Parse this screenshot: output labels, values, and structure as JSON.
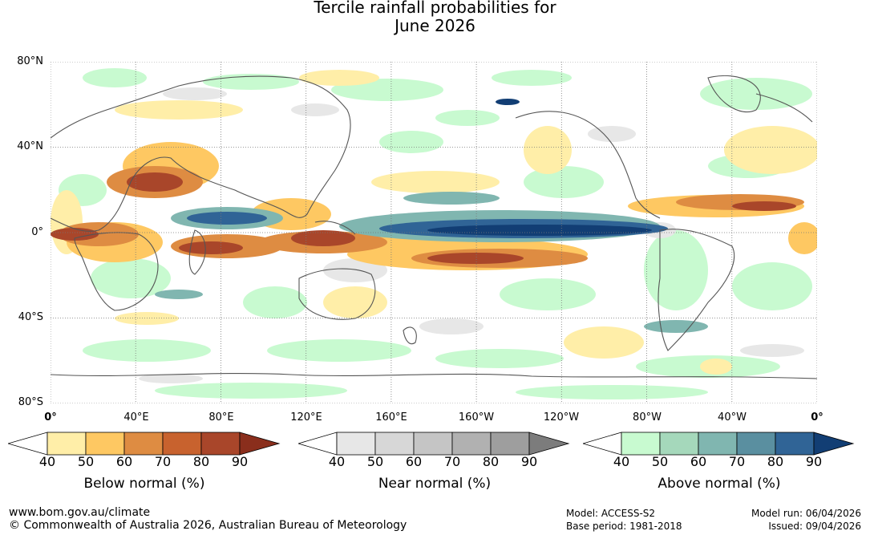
{
  "title": {
    "line1": "Tercile rainfall probabilities for",
    "line2": "June 2026"
  },
  "lat_labels": [
    "80°N",
    "40°N",
    "0°",
    "40°S",
    "80°S"
  ],
  "lon_labels": [
    "0°",
    "40°E",
    "80°E",
    "120°E",
    "160°E",
    "160°W",
    "120°W",
    "80°W",
    "40°W",
    "0°"
  ],
  "legends": [
    {
      "title": "Below normal (%)",
      "ticks": [
        "40",
        "50",
        "60",
        "70",
        "80",
        "90"
      ],
      "colors": [
        "#ffffff",
        "#ffeea8",
        "#fec862",
        "#de8c42",
        "#c8622e",
        "#a9462a",
        "#8a2e1c"
      ]
    },
    {
      "title": "Near normal (%)",
      "ticks": [
        "40",
        "50",
        "60",
        "70",
        "80",
        "90"
      ],
      "colors": [
        "#ffffff",
        "#e7e7e7",
        "#d7d7d7",
        "#c5c5c5",
        "#b1b1b1",
        "#9e9e9e",
        "#7c7c7c"
      ]
    },
    {
      "title": "Above normal (%)",
      "ticks": [
        "40",
        "50",
        "60",
        "70",
        "80",
        "90"
      ],
      "colors": [
        "#ffffff",
        "#c8fad0",
        "#a5d8bb",
        "#80b6b0",
        "#5a8fa0",
        "#306496",
        "#123e74"
      ]
    }
  ],
  "footer": {
    "website": "www.bom.gov.au/climate",
    "copyright": "© Commonwealth of Australia 2026, Australian Bureau of Meteorology",
    "model": "Model: ACCESS-S2",
    "base_period": "Base period: 1981-2018",
    "model_run": "Model run: 06/04/2026",
    "issued": "Issued: 09/04/2026"
  }
}
